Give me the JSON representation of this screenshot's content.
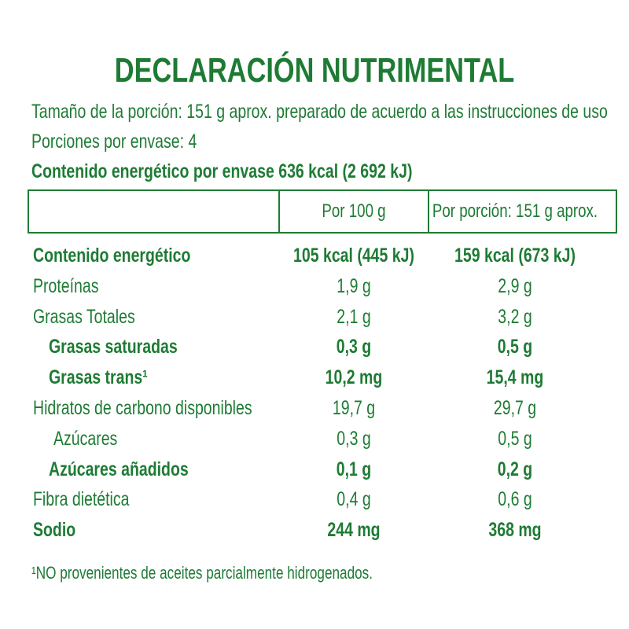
{
  "header": {
    "title": "DECLARACIÓN NUTRIMENTAL",
    "lines": [
      {
        "text": "Tamaño de la porción: 151 g aprox. preparado de acuerdo a las instrucciones de uso",
        "bold": false
      },
      {
        "text": "Porciones por envase: 4",
        "bold": false
      },
      {
        "text": "Contenido energético por envase 636 kcal (2 692 kJ)",
        "bold": true
      }
    ]
  },
  "table": {
    "columns": [
      "Por 100 g",
      "Por porción: 151 g aprox."
    ],
    "rows": [
      {
        "label": "Contenido energético",
        "bold": true,
        "indent": 0,
        "values": [
          "105 kcal (445 kJ)",
          "159 kcal (673 kJ)"
        ]
      },
      {
        "label": "Proteínas",
        "bold": false,
        "indent": 0,
        "values": [
          "1,9 g",
          "2,9 g"
        ]
      },
      {
        "label": "Grasas Totales",
        "bold": false,
        "indent": 0,
        "values": [
          "2,1 g",
          "3,2 g"
        ]
      },
      {
        "label": "Grasas saturadas",
        "bold": true,
        "indent": 1,
        "values": [
          "0,3 g",
          "0,5 g"
        ]
      },
      {
        "label": "Grasas trans¹",
        "bold": true,
        "indent": 1,
        "values": [
          "10,2 mg",
          "15,4 mg"
        ]
      },
      {
        "label": "Hidratos de carbono disponibles",
        "bold": false,
        "indent": 0,
        "values": [
          "19,7 g",
          "29,7 g"
        ]
      },
      {
        "label": "Azúcares",
        "bold": false,
        "indent": 1,
        "values": [
          "0,3 g",
          "0,5 g"
        ]
      },
      {
        "label": "Azúcares añadidos",
        "bold": true,
        "indent": 1,
        "values": [
          "0,1 g",
          "0,2 g"
        ]
      },
      {
        "label": "Fibra dietética",
        "bold": false,
        "indent": 0,
        "values": [
          "0,4 g",
          "0,6 g"
        ]
      },
      {
        "label": "Sodio",
        "bold": true,
        "indent": 0,
        "values": [
          "244 mg",
          "368 mg"
        ]
      }
    ]
  },
  "footnote": "¹NO provenientes de aceites parcialmente hidrogenados."
}
